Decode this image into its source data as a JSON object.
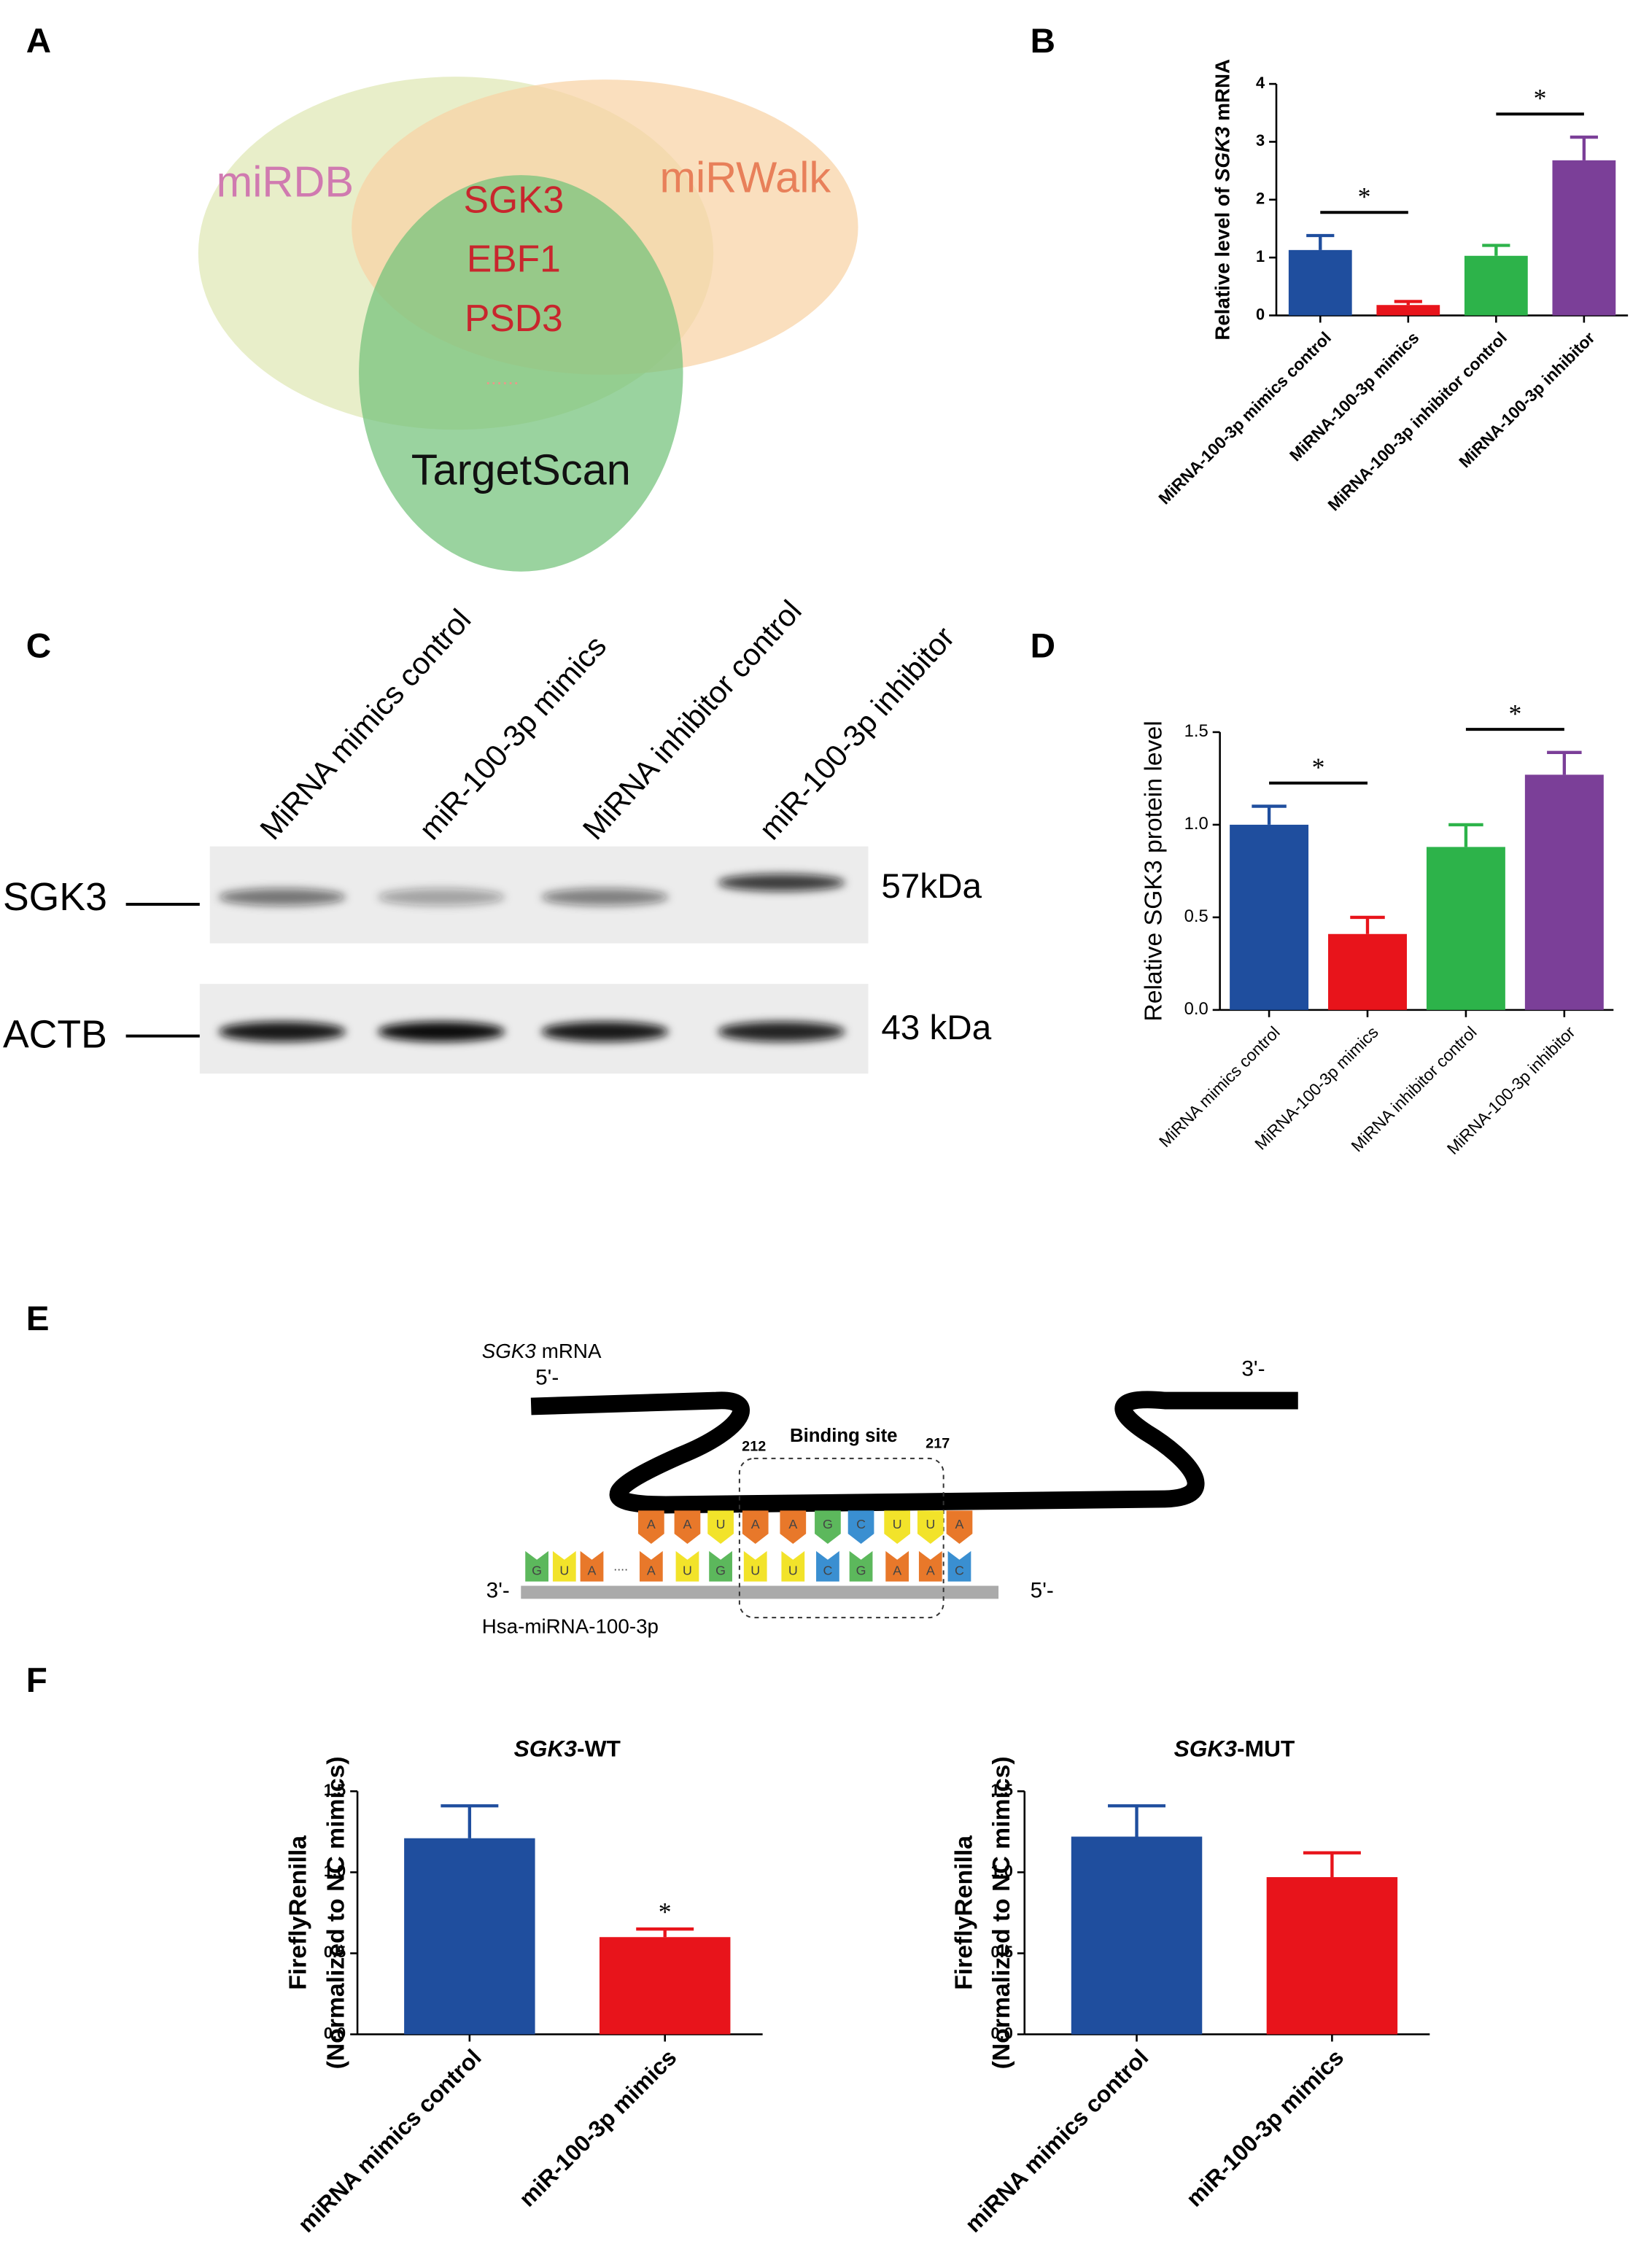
{
  "panel_labels": [
    "A",
    "B",
    "C",
    "D",
    "E",
    "F"
  ],
  "venn": {
    "sets": [
      "miRDB",
      "miRWalk",
      "TargetScan"
    ],
    "genes": [
      "SGK3",
      "EBF1",
      "PSD3"
    ],
    "more": "......",
    "colors": [
      "#dfe8b4",
      "#f8d3a5",
      "#73c27a"
    ],
    "set_label_colors": [
      "#d07ab0",
      "#e8805a",
      "#111111"
    ],
    "gene_color": "#c8262d"
  },
  "blot": {
    "lanes": [
      "MiRNA mimics control",
      "miR-100-3p mimics",
      "MiRNA inhibitor control",
      "miR-100-3p inhibitor"
    ],
    "proteins": [
      {
        "name": "SGK3",
        "size": "57kDa"
      },
      {
        "name": "ACTB",
        "size": "43 kDa"
      }
    ]
  },
  "binding": {
    "mrna_gene": "SGK3",
    "mrna_label": "mRNA",
    "mrna_5": "5'-",
    "mrna_3": "3'-",
    "site_label": "Binding site",
    "site_start": 212,
    "site_end": 217,
    "mrna_bases": [
      "A",
      "A",
      "U",
      "A",
      "A",
      "G",
      "C",
      "U",
      "U",
      "A"
    ],
    "mirna_bases": [
      "G",
      "U",
      "A",
      "....",
      "A",
      "U",
      "G",
      "U",
      "U",
      "C",
      "G",
      "A",
      "A",
      "C"
    ],
    "mirna_3": "3'-",
    "mirna_5": "5'-",
    "mirna_name": "Hsa-miRNA-100-3p",
    "base_colors": {
      "A": "#e8782a",
      "U": "#f2e32a",
      "G": "#5cb85c",
      "C": "#3a8fd1"
    }
  },
  "chart_data": [
    {
      "type": "bar",
      "y_label": [
        [
          {
            "text": "Relative level of "
          },
          {
            "text": "SGK3",
            "italic": true
          },
          {
            "text": " mRNA"
          }
        ]
      ],
      "categories": [
        "MiRNA-100-3p mimics control",
        "MiRNA-100-3p mimics",
        "MiRNA-100-3p inhibitor control",
        "MiRNA-100-3p inhibitor"
      ],
      "values": [
        1.13,
        0.18,
        1.03,
        2.68
      ],
      "errors": [
        0.25,
        0.06,
        0.18,
        0.4
      ],
      "colors": [
        "#1f4e9e",
        "#e8141b",
        "#2db34a",
        "#7b3f98"
      ],
      "ylim": [
        0,
        4
      ],
      "yticks": [
        0,
        1,
        2,
        3,
        4
      ],
      "significance": [
        {
          "text": "*",
          "from": 0,
          "to": 1
        },
        {
          "text": "*",
          "from": 2,
          "to": 3
        }
      ]
    },
    {
      "type": "bar",
      "y_label": [
        [
          {
            "text": "Relative SGK3 protein level"
          }
        ]
      ],
      "categories": [
        "MiRNA mimics control",
        "MiRNA-100-3p mimics",
        "MiRNA inhibitor control",
        "MiRNA-100-3p inhibitor"
      ],
      "values": [
        1.0,
        0.41,
        0.88,
        1.27
      ],
      "errors": [
        0.1,
        0.09,
        0.12,
        0.12
      ],
      "colors": [
        "#1f4e9e",
        "#e8141b",
        "#2db34a",
        "#7b3f98"
      ],
      "ylim": [
        0,
        1.5
      ],
      "yticks": [
        {
          "value": 0,
          "label": "0.0"
        },
        0.5,
        {
          "value": 1,
          "label": "1.0"
        },
        1.5
      ],
      "significance": [
        {
          "text": "*",
          "from": 0,
          "to": 1
        },
        {
          "text": "*",
          "from": 2,
          "to": 3
        }
      ]
    },
    {
      "type": "bar",
      "title": [
        {
          "text": "SGK3",
          "italic": true
        },
        {
          "text": "-WT"
        }
      ],
      "y_label": [
        [
          {
            "text": "FireflyRenilla"
          }
        ],
        [
          {
            "text": "(Normalized to NC mimics)"
          }
        ]
      ],
      "categories": [
        "miRNA mimics control",
        "miR-100-3p mimics"
      ],
      "values": [
        1.21,
        0.6
      ],
      "errors": [
        0.2,
        0.05
      ],
      "colors": [
        "#1f4e9e",
        "#e8141b"
      ],
      "ylim": [
        0,
        1.5
      ],
      "yticks": [
        {
          "value": 0,
          "label": "0.0"
        },
        0.5,
        {
          "value": 1,
          "label": "1.0"
        },
        1.5
      ],
      "significance": [
        {
          "text": "*",
          "from": 1,
          "to": 1
        }
      ]
    },
    {
      "type": "bar",
      "title": [
        {
          "text": "SGK3",
          "italic": true
        },
        {
          "text": "-MUT"
        }
      ],
      "y_label": [
        [
          {
            "text": "FireflyRenilla"
          }
        ],
        [
          {
            "text": "(Normalized to NC mimics)"
          }
        ]
      ],
      "categories": [
        "miRNA mimics control",
        "miR-100-3p mimics"
      ],
      "values": [
        1.22,
        0.97
      ],
      "errors": [
        0.19,
        0.15
      ],
      "colors": [
        "#1f4e9e",
        "#e8141b"
      ],
      "ylim": [
        0,
        1.5
      ],
      "yticks": [
        {
          "value": 0,
          "label": "0.0"
        },
        0.5,
        {
          "value": 1,
          "label": "1.0"
        },
        1.5
      ]
    }
  ]
}
